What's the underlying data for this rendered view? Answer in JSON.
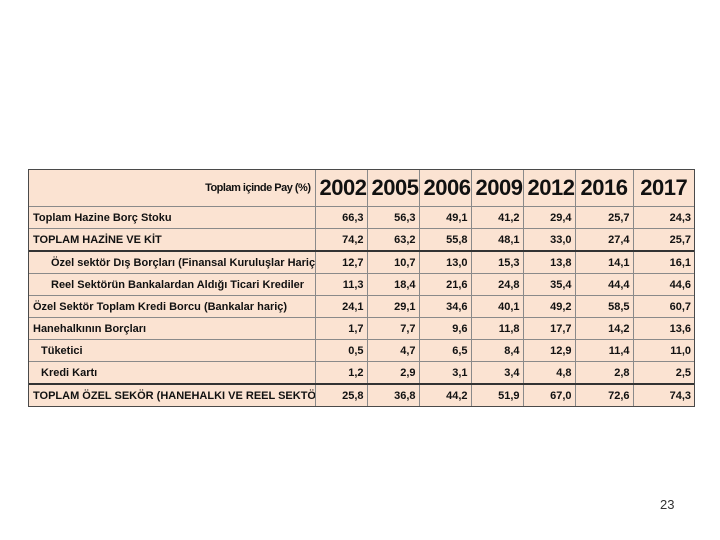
{
  "table": {
    "caption": "Toplam içinde Pay (%)",
    "years": [
      "2002",
      "2005",
      "2006",
      "2009",
      "2012",
      "2016",
      "2017"
    ],
    "rows": [
      {
        "label": "Toplam Hazine Borç Stoku",
        "values": [
          "66,3",
          "56,3",
          "49,1",
          "41,2",
          "29,4",
          "25,7",
          "24,3"
        ]
      },
      {
        "label": "TOPLAM HAZİNE VE KİT",
        "values": [
          "74,2",
          "63,2",
          "55,8",
          "48,1",
          "33,0",
          "27,4",
          "25,7"
        ]
      },
      {
        "label": "Özel sektör Dış Borçları (Finansal Kuruluşlar Hariç)",
        "values": [
          "12,7",
          "10,7",
          "13,0",
          "15,3",
          "13,8",
          "14,1",
          "16,1"
        ]
      },
      {
        "label": "Reel Sektörün Bankalardan Aldığı Ticari Krediler",
        "values": [
          "11,3",
          "18,4",
          "21,6",
          "24,8",
          "35,4",
          "44,4",
          "44,6"
        ]
      },
      {
        "label": "Özel Sektör Toplam Kredi Borcu (Bankalar hariç)",
        "values": [
          "24,1",
          "29,1",
          "34,6",
          "40,1",
          "49,2",
          "58,5",
          "60,7"
        ]
      },
      {
        "label": "Hanehalkının Borçları",
        "values": [
          "1,7",
          "7,7",
          "9,6",
          "11,8",
          "17,7",
          "14,2",
          "13,6"
        ]
      },
      {
        "label": "Tüketici",
        "values": [
          "0,5",
          "4,7",
          "6,5",
          "8,4",
          "12,9",
          "11,4",
          "11,0"
        ]
      },
      {
        "label": "Kredi Kartı",
        "values": [
          "1,2",
          "2,9",
          "3,1",
          "3,4",
          "4,8",
          "2,8",
          "2,5"
        ]
      },
      {
        "label": "TOPLAM ÖZEL SEKÖR (HANEHALKI VE REEL SEKTÖR)",
        "values": [
          "25,8",
          "36,8",
          "44,2",
          "51,9",
          "67,0",
          "72,6",
          "74,3"
        ]
      }
    ]
  },
  "page_number": "23"
}
